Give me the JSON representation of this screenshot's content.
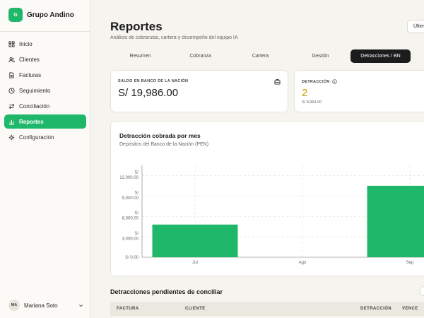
{
  "brand": {
    "logo_letter": "G",
    "name": "Grupo Andino"
  },
  "sidebar": {
    "items": [
      {
        "label": "Inicio",
        "icon": "grid-icon"
      },
      {
        "label": "Clientes",
        "icon": "users-icon"
      },
      {
        "label": "Facturas",
        "icon": "file-icon"
      },
      {
        "label": "Seguimiento",
        "icon": "clock-icon"
      },
      {
        "label": "Conciliación",
        "icon": "swap-icon"
      },
      {
        "label": "Reportes",
        "icon": "bar-chart-icon",
        "active": true
      },
      {
        "label": "Configuración",
        "icon": "gear-icon"
      }
    ],
    "user": {
      "initials": "MA",
      "name": "Mariana Soto"
    }
  },
  "header": {
    "title": "Reportes",
    "subtitle": "Análisis de cobranzas, cartera y desempeño del equipo IA",
    "period_label": "Últim"
  },
  "tabs": [
    {
      "label": "Resumen"
    },
    {
      "label": "Cobranza"
    },
    {
      "label": "Cartera"
    },
    {
      "label": "Gestión"
    },
    {
      "label": "Detracciones / BN",
      "active": true
    }
  ],
  "kpis": {
    "balance": {
      "label": "SALDO EN BANCO DE LA NACIÓN",
      "value": "S/ 19,986.00",
      "icon": "wallet-icon"
    },
    "detraccion": {
      "label": "DETRACCIÓN",
      "value": "2",
      "sub": "S/ 8,964.00",
      "icon": "info-icon"
    }
  },
  "chart_card": {
    "title": "Detracción cobrada por mes",
    "subtitle": "Depósitos del Banco de la Nación (PEN)"
  },
  "chart_data": {
    "type": "bar",
    "categories": [
      "Jul",
      "Ago",
      "Sep"
    ],
    "values": [
      4800,
      0,
      10500
    ],
    "ylim": [
      0,
      13500
    ],
    "yticks": [
      0,
      3000,
      6000,
      9000,
      12000
    ],
    "ytick_labels": [
      [
        "S/ 0.00"
      ],
      [
        "S/",
        "3,000.00"
      ],
      [
        "S/",
        "6,000.00"
      ],
      [
        "S/",
        "9,000.00"
      ],
      [
        "S/",
        "12,000.00"
      ]
    ],
    "grid": true,
    "bar_color": "#1fb86a"
  },
  "pending": {
    "title": "Detracciones pendientes de conciliar",
    "columns": [
      "FACTURA",
      "CLIENTE",
      "DETRACCIÓN",
      "VENCE"
    ]
  },
  "colors": {
    "accent": "#1fb86a",
    "gold": "#d79a06",
    "dark": "#1c1c1c"
  }
}
